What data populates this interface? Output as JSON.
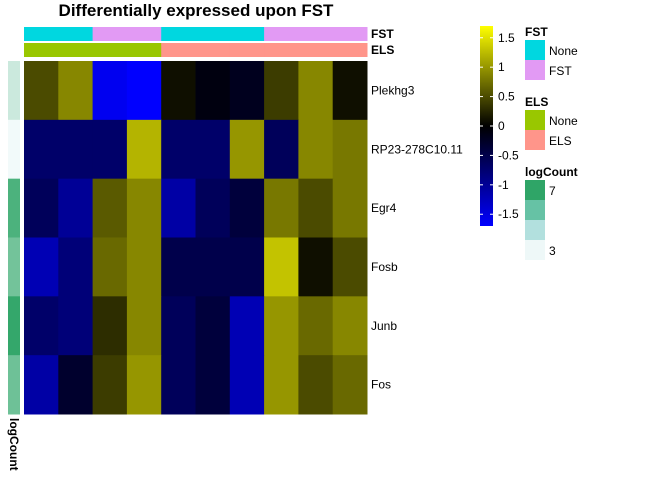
{
  "chart_data": {
    "type": "heatmap",
    "title": "Differentially expressed upon FST",
    "rows": [
      "Plekhg3",
      "RP23-278C10.11",
      "Egr4",
      "Fosb",
      "Junb",
      "Fos"
    ],
    "n_columns": 10,
    "values": [
      [
        0.5,
        0.9,
        -1.6,
        -1.7,
        0.1,
        -0.1,
        -0.2,
        0.4,
        0.9,
        0.1
      ],
      [
        -0.7,
        -0.7,
        -0.7,
        1.2,
        -0.7,
        -0.7,
        1.0,
        -0.6,
        0.9,
        0.8
      ],
      [
        -0.6,
        -1.0,
        0.6,
        0.9,
        -1.1,
        -0.6,
        -0.4,
        0.8,
        0.5,
        0.8
      ],
      [
        -1.2,
        -0.8,
        0.7,
        0.9,
        -0.5,
        -0.5,
        -0.5,
        1.3,
        0.1,
        0.5
      ],
      [
        -0.7,
        -0.8,
        0.3,
        0.9,
        -0.6,
        -0.4,
        -1.2,
        1.0,
        0.7,
        0.9
      ],
      [
        -1.1,
        -0.3,
        0.4,
        1.0,
        -0.6,
        -0.4,
        -1.2,
        1.0,
        0.5,
        0.7
      ]
    ],
    "col_annotations": [
      {
        "name": "FST",
        "values": [
          "None",
          "None",
          "FST",
          "FST",
          "None",
          "None",
          "None",
          "FST",
          "FST",
          "FST"
        ]
      },
      {
        "name": "ELS",
        "values": [
          "None",
          "None",
          "None",
          "None",
          "ELS",
          "ELS",
          "ELS",
          "ELS",
          "ELS",
          "ELS"
        ]
      }
    ],
    "row_annotation": {
      "name": "logCount",
      "values": [
        3.8,
        3.0,
        6.4,
        5.6,
        6.9,
        5.7
      ]
    },
    "color_scale": {
      "min": -1.7,
      "max": 1.7,
      "ticks": [
        1.5,
        1,
        0.5,
        0,
        -0.5,
        -1,
        -1.5
      ],
      "ticks_labels": [
        "1.5",
        "1",
        "0.5",
        "0",
        "-0.5",
        "-1",
        "-1.5"
      ]
    },
    "legends": [
      {
        "title": "FST",
        "items": [
          {
            "label": "None",
            "color": "#00D7E0"
          },
          {
            "label": "FST",
            "color": "#E29AF4"
          }
        ]
      },
      {
        "title": "ELS",
        "items": [
          {
            "label": "None",
            "color": "#99C700"
          },
          {
            "label": "ELS",
            "color": "#FF958A"
          }
        ]
      },
      {
        "title": "logCount",
        "labels": [
          "7",
          "3"
        ],
        "colors": [
          "#2FA567",
          "#66C2A5",
          "#B2E0DE",
          "#EEF8F8"
        ]
      }
    ]
  },
  "colors": {
    "FST": {
      "None": "#00D7E0",
      "FST": "#E29AF4"
    },
    "ELS": {
      "None": "#99C700",
      "ELS": "#FF958A"
    },
    "heatmap_low": "#0000FF",
    "heatmap_mid": "#000000",
    "heatmap_high": "#FFFF00"
  }
}
